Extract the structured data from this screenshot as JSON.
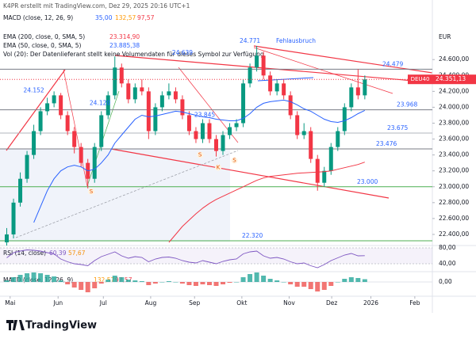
{
  "header": {
    "watermark": "K4PR erstellt mit TradingView.com, Dez 29, 2025 20:16 UTC+1",
    "macd_legend": {
      "name": "MACD (close, 12, 26, 9)",
      "values": [
        "35,00",
        "132,57",
        "97,57"
      ]
    },
    "vol_legend": "Vol (20): Der Datenlieferant stellt keine Volumendaten für dieses Symbol zur Verfügung"
  },
  "chart_data": [
    {
      "type": "candlestick",
      "currency": "EUR",
      "xlim": [
        0,
        64
      ],
      "ylim": [
        22260,
        25300
      ],
      "xticks": [
        {
          "value": 1.5,
          "label": "Mai"
        },
        {
          "value": 8.6,
          "label": "Jun"
        },
        {
          "value": 15.3,
          "label": "Jul"
        },
        {
          "value": 22.3,
          "label": "Aug"
        },
        {
          "value": 28.8,
          "label": "Sep"
        },
        {
          "value": 35.8,
          "label": "Okt"
        },
        {
          "value": 42.8,
          "label": "Nov"
        },
        {
          "value": 49.1,
          "label": "Dez"
        },
        {
          "value": 54.9,
          "label": "2026"
        },
        {
          "value": 61.4,
          "label": "Feb"
        }
      ],
      "yticks": [
        {
          "value": 22400,
          "label": "22.400,00"
        },
        {
          "value": 22600,
          "label": "22.600,00"
        },
        {
          "value": 22800,
          "label": "22.800,00"
        },
        {
          "value": 23000,
          "label": "23.000,00"
        },
        {
          "value": 23200,
          "label": "23.200,00"
        },
        {
          "value": 23400,
          "label": "23.400,00"
        },
        {
          "value": 23600,
          "label": "23.600,00"
        },
        {
          "value": 23800,
          "label": "23.800,00"
        },
        {
          "value": 24000,
          "label": "24.000,00"
        },
        {
          "value": 24200,
          "label": "24.200,00"
        },
        {
          "value": 24400,
          "label": "24.400,00"
        },
        {
          "value": 24600,
          "label": "24.600,00"
        }
      ],
      "up_color": "#089981",
      "down_color": "#f23645",
      "open": [
        22300,
        22400,
        22800,
        23100,
        23400,
        23700,
        23950,
        24050,
        24150,
        23900,
        23700,
        23500,
        23300,
        23100,
        23500,
        23900,
        24150,
        24500,
        24300,
        24100,
        24250,
        24200,
        23700,
        24000,
        24150,
        24200,
        24100,
        23900,
        23700,
        23600,
        23800,
        23600,
        23450,
        23650,
        23750,
        23800,
        24300,
        24500,
        24650,
        24400,
        24200,
        24300,
        24150,
        23900,
        23650,
        23700,
        23350,
        23050,
        23200,
        23500,
        23700,
        24000,
        24250,
        24150
      ],
      "high": [
        22480,
        22850,
        23180,
        23450,
        23780,
        24000,
        24120,
        24200,
        24180,
        23950,
        23750,
        23550,
        23350,
        23550,
        23950,
        24200,
        24640,
        24550,
        24350,
        24300,
        24350,
        24250,
        24050,
        24200,
        24300,
        24250,
        24150,
        23950,
        23750,
        23850,
        23850,
        23650,
        23700,
        23800,
        23850,
        24350,
        24550,
        24771,
        24700,
        24450,
        24350,
        24350,
        24200,
        23950,
        23800,
        23750,
        23400,
        23250,
        23550,
        23750,
        24050,
        24300,
        24479,
        24400
      ],
      "low": [
        22230,
        22350,
        22750,
        23050,
        23350,
        23650,
        23900,
        24000,
        23850,
        23650,
        23420,
        23250,
        22980,
        23050,
        23450,
        23850,
        24100,
        24250,
        24050,
        24050,
        24150,
        23600,
        23650,
        23950,
        24100,
        24050,
        23850,
        23650,
        23550,
        23550,
        23550,
        23380,
        23400,
        23600,
        23700,
        23750,
        24250,
        24450,
        24350,
        24150,
        24150,
        24100,
        23850,
        23600,
        23600,
        23300,
        22950,
        23000,
        23150,
        23450,
        23650,
        23950,
        24100,
        24100
      ],
      "close": [
        22400,
        22800,
        23100,
        23400,
        23700,
        23950,
        24050,
        24150,
        23900,
        23700,
        23500,
        23300,
        23100,
        23500,
        23900,
        24150,
        24500,
        24300,
        24100,
        24250,
        24200,
        23700,
        24000,
        24150,
        24200,
        24100,
        23900,
        23700,
        23600,
        23800,
        23600,
        23450,
        23650,
        23750,
        23800,
        24300,
        24500,
        24650,
        24400,
        24200,
        24300,
        24150,
        23900,
        23650,
        23700,
        23350,
        23050,
        23200,
        23500,
        23700,
        24000,
        24250,
        24150,
        24351
      ],
      "series": [
        {
          "name": "EMA (200, close, 0, SMA, 5)",
          "legend_value": "23.314,90",
          "color": "#f23645",
          "values": [
            null,
            null,
            null,
            null,
            null,
            null,
            null,
            null,
            null,
            null,
            null,
            null,
            null,
            null,
            null,
            null,
            null,
            null,
            null,
            null,
            null,
            null,
            null,
            null,
            22300,
            22400,
            22500,
            22580,
            22660,
            22730,
            22790,
            22840,
            22880,
            22920,
            22960,
            23000,
            23040,
            23080,
            23110,
            23130,
            23140,
            23150,
            23160,
            23170,
            23175,
            23180,
            23185,
            23190,
            23200,
            23220,
            23240,
            23260,
            23280,
            23310
          ]
        },
        {
          "name": "EMA (50, close, 0, SMA, 5)",
          "legend_value": "23.885,38",
          "color": "#2962ff",
          "values": [
            null,
            null,
            null,
            null,
            22550,
            22750,
            22950,
            23100,
            23200,
            23250,
            23270,
            23250,
            23200,
            23220,
            23300,
            23400,
            23550,
            23650,
            23750,
            23850,
            23900,
            23880,
            23890,
            23910,
            23930,
            23950,
            23940,
            23920,
            23900,
            23880,
            23870,
            23850,
            23840,
            23830,
            23830,
            23860,
            23920,
            24000,
            24050,
            24070,
            24080,
            24090,
            24070,
            24030,
            23980,
            23950,
            23900,
            23850,
            23820,
            23810,
            23830,
            23870,
            23920,
            23960
          ]
        }
      ],
      "levels": [
        {
          "value": 24479,
          "label": "24.479",
          "color": "#787b86"
        },
        {
          "value": 23968,
          "label": "23.968",
          "color": "#787b86"
        },
        {
          "value": 23675,
          "label": "23.675",
          "color": "#b2b5be"
        },
        {
          "value": 23476,
          "label": "23.476",
          "color": "#787b86"
        },
        {
          "value": 23000,
          "label": "23.000",
          "color": "#4caf50"
        },
        {
          "value": 22320,
          "label": "22.320",
          "color": "#4caf50"
        }
      ],
      "annotations": [
        {
          "text": "24.771",
          "x": 37,
          "y": 24830
        },
        {
          "text": "Fehlausbruch",
          "x": 43.8,
          "y": 24830
        },
        {
          "text": "24.639",
          "x": 27,
          "y": 24680
        },
        {
          "text": "24.152",
          "x": 5,
          "y": 24210
        },
        {
          "text": "24.120",
          "x": 14.8,
          "y": 24050
        },
        {
          "text": "23.845",
          "x": 30.3,
          "y": 23900
        }
      ],
      "signals": [
        {
          "text": "S",
          "x": 13.5,
          "y": 22940
        },
        {
          "text": "S",
          "x": 29.6,
          "y": 23400
        },
        {
          "text": "K",
          "x": 32.3,
          "y": 23240
        },
        {
          "text": "S",
          "x": 34.7,
          "y": 23330
        }
      ],
      "last": {
        "symbol": "DEU40",
        "value": 24351.13,
        "label": "24.351,13"
      }
    },
    {
      "type": "line",
      "name": "RSI (14, close)",
      "legend_values": [
        "60,39",
        "57,67"
      ],
      "color": "#7e57c2",
      "ylim": [
        20,
        82
      ],
      "yticks": [
        {
          "value": 80,
          "label": "80,00"
        },
        {
          "value": 40,
          "label": "40,00"
        }
      ],
      "values": [
        55,
        68,
        72,
        75,
        74,
        72,
        68,
        65,
        52,
        45,
        40,
        38,
        35,
        48,
        58,
        64,
        70,
        60,
        54,
        58,
        56,
        45,
        52,
        56,
        57,
        54,
        48,
        44,
        42,
        48,
        44,
        40,
        46,
        50,
        52,
        65,
        70,
        72,
        60,
        54,
        56,
        52,
        45,
        40,
        42,
        35,
        30,
        38,
        48,
        55,
        62,
        66,
        60,
        60.39
      ]
    },
    {
      "type": "histogram",
      "name": "MACD (close, 12, 26, 9)",
      "ylim": [
        -160,
        110
      ],
      "up_color": "#26a69a",
      "down_color": "#ef5350",
      "yticks": [
        {
          "value": 0,
          "label": "0,00"
        }
      ],
      "values": [
        20,
        60,
        90,
        110,
        120,
        110,
        90,
        70,
        20,
        -30,
        -70,
        -100,
        -130,
        -80,
        -20,
        30,
        80,
        60,
        30,
        20,
        10,
        -40,
        -20,
        0,
        10,
        0,
        -20,
        -40,
        -50,
        -30,
        -40,
        -50,
        -30,
        -10,
        0,
        60,
        100,
        120,
        80,
        40,
        20,
        0,
        -30,
        -60,
        -60,
        -90,
        -120,
        -100,
        -50,
        0,
        40,
        60,
        50,
        35
      ]
    }
  ],
  "footer": {
    "logo": "TradingView"
  }
}
